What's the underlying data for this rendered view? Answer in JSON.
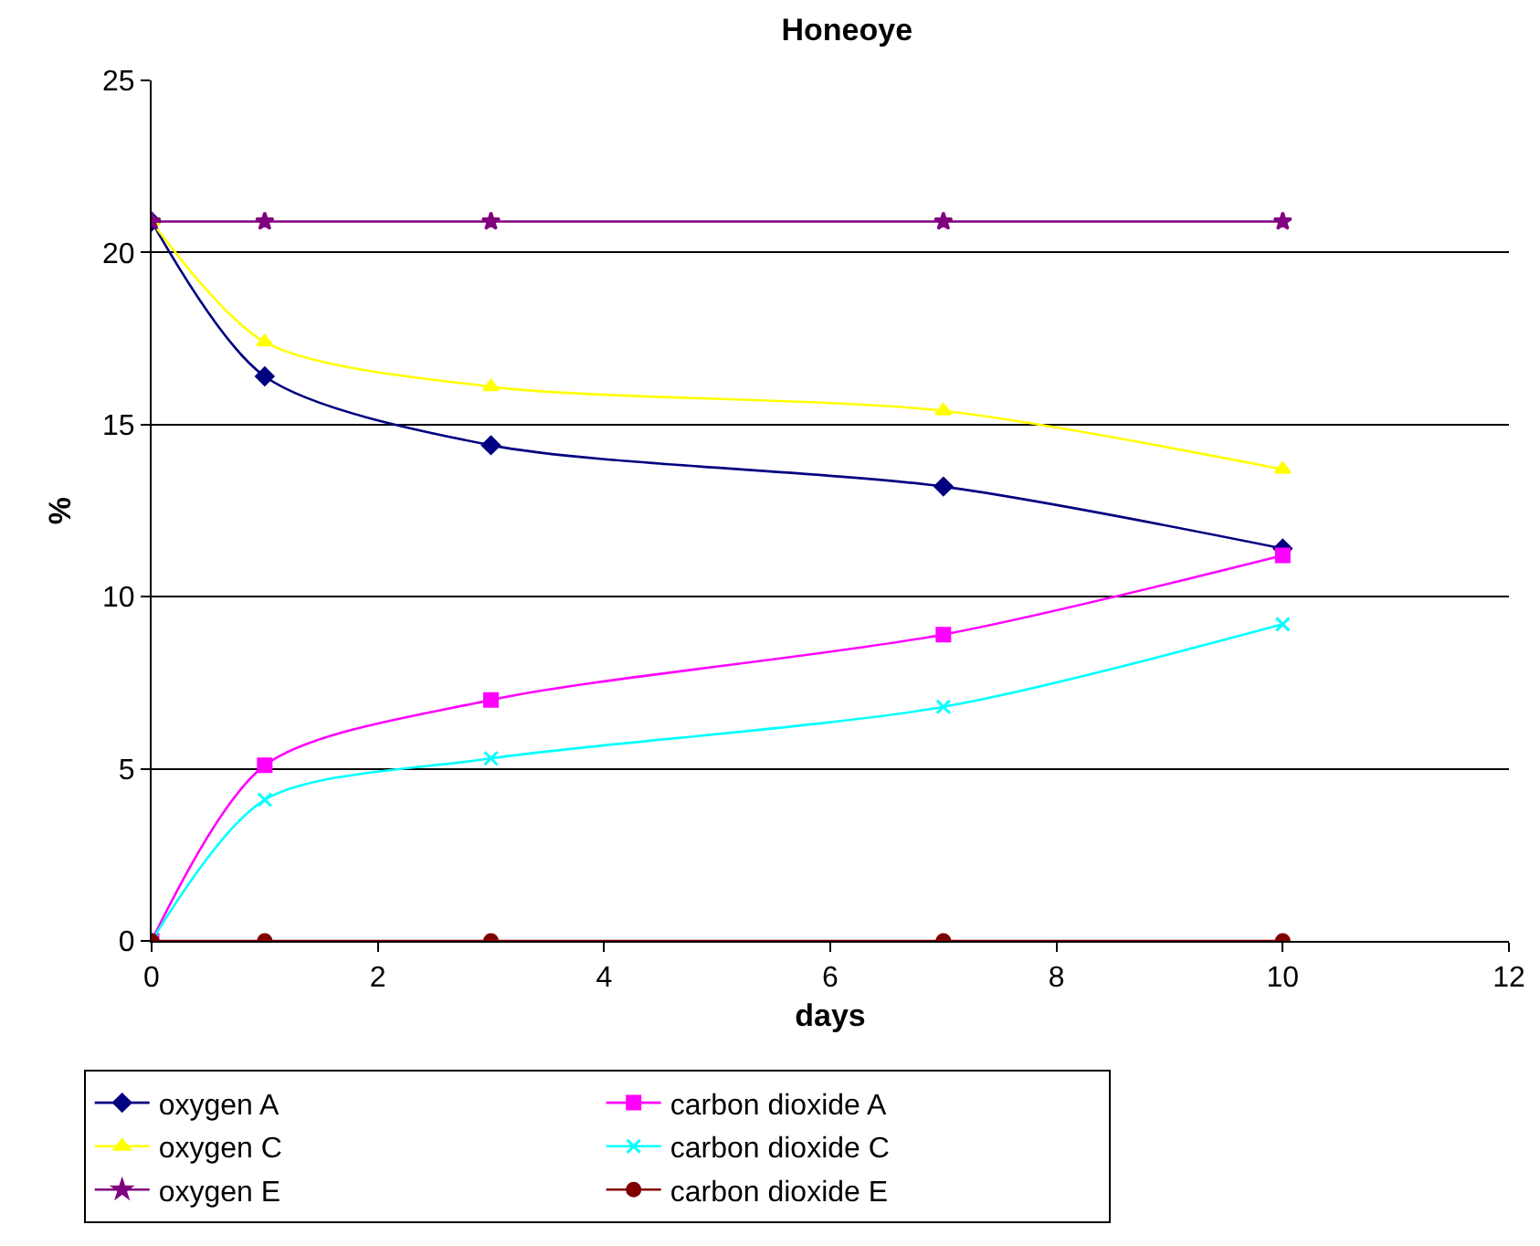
{
  "chart_data": {
    "type": "line",
    "title": "Honeoye",
    "xlabel": "days",
    "ylabel": "%",
    "x": [
      0,
      1,
      3,
      7,
      10
    ],
    "xlim": [
      0,
      12
    ],
    "xticks": [
      0,
      2,
      4,
      6,
      8,
      10,
      12
    ],
    "ylim": [
      0,
      25
    ],
    "yticks": [
      0,
      5,
      10,
      15,
      20,
      25
    ],
    "grid": "y",
    "legend": "bottom",
    "line_style": "solid",
    "series": [
      {
        "name": "oxygen A",
        "color": "#000080",
        "marker": "diamond",
        "values": [
          20.9,
          16.4,
          14.4,
          13.2,
          11.4
        ]
      },
      {
        "name": "carbon dioxide A",
        "color": "#ff00ff",
        "marker": "square",
        "values": [
          0,
          5.1,
          7.0,
          8.9,
          11.2
        ]
      },
      {
        "name": "oxygen C",
        "color": "#ffff00",
        "marker": "triangle",
        "values": [
          20.9,
          17.4,
          16.1,
          15.4,
          13.7
        ]
      },
      {
        "name": "carbon dioxide C",
        "color": "#00ffff",
        "marker": "cross",
        "values": [
          0,
          4.1,
          5.3,
          6.8,
          9.2
        ]
      },
      {
        "name": "oxygen E",
        "color": "#800080",
        "marker": "star",
        "values": [
          20.9,
          20.9,
          20.9,
          20.9,
          20.9
        ]
      },
      {
        "name": "carbon dioxide E",
        "color": "#800000",
        "marker": "circle",
        "values": [
          0,
          0,
          0,
          0,
          0
        ]
      }
    ]
  }
}
